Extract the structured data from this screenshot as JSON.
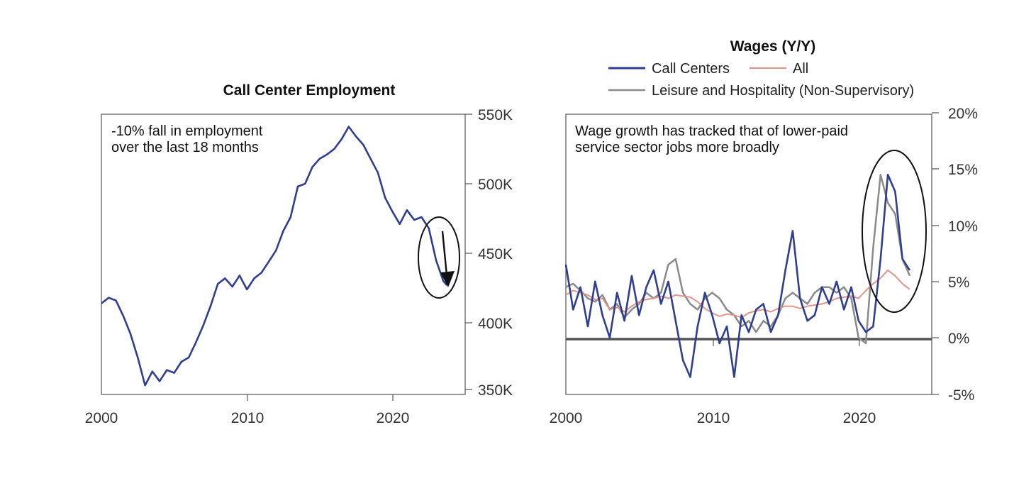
{
  "chart_data": [
    {
      "type": "line",
      "title": "Call Center Employment",
      "annotation": [
        "-10% fall in employment",
        "over the last 18 months"
      ],
      "x_ticks": [
        "2000",
        "2010",
        "2020"
      ],
      "y_ticks": [
        "550K",
        "500K",
        "450K",
        "400K",
        "350K"
      ],
      "xlim": [
        2000,
        2025
      ],
      "ylim": [
        346,
        552
      ],
      "y_axis_side": "right",
      "x": [
        2000,
        2000.5,
        2001,
        2001.5,
        2002,
        2002.5,
        2003,
        2003.5,
        2004,
        2004.5,
        2005,
        2005.5,
        2006,
        2006.5,
        2007,
        2007.5,
        2008,
        2008.5,
        2009,
        2009.5,
        2010,
        2010.5,
        2011,
        2011.5,
        2012,
        2012.5,
        2013,
        2013.5,
        2014,
        2014.5,
        2015,
        2015.5,
        2016,
        2016.5,
        2017,
        2017.5,
        2018,
        2018.5,
        2019,
        2019.5,
        2020,
        2020.5,
        2021,
        2021.5,
        2022,
        2022.5,
        2023,
        2023.5,
        2023.75
      ],
      "series": [
        {
          "color": "#2f3e8f",
          "values": [
            414,
            418,
            416,
            405,
            392,
            375,
            355,
            365,
            358,
            366,
            364,
            372,
            375,
            386,
            398,
            412,
            428,
            432,
            426,
            434,
            424,
            432,
            436,
            444,
            452,
            466,
            476,
            498,
            500,
            512,
            518,
            521,
            525,
            532,
            541,
            534,
            528,
            518,
            508,
            490,
            480,
            471,
            481,
            474,
            476,
            468,
            445,
            430,
            427
          ]
        }
      ]
    },
    {
      "type": "line",
      "title": "Wages (Y/Y)",
      "annotation": [
        "Wage growth has tracked that of lower-paid",
        "service sector jobs more broadly"
      ],
      "x_ticks": [
        "2000",
        "2010",
        "2020"
      ],
      "y_ticks": [
        "20%",
        "15%",
        "10%",
        "5%",
        "0%",
        "-5%"
      ],
      "xlim": [
        2000,
        2025
      ],
      "ylim": [
        -5,
        20
      ],
      "y_axis_side": "right",
      "x": [
        2000,
        2000.5,
        2001,
        2001.5,
        2002,
        2002.5,
        2003,
        2003.5,
        2004,
        2004.5,
        2005,
        2005.5,
        2006,
        2006.5,
        2007,
        2007.5,
        2008,
        2008.5,
        2009,
        2009.5,
        2010,
        2010.5,
        2011,
        2011.5,
        2012,
        2012.5,
        2013,
        2013.5,
        2014,
        2014.5,
        2015,
        2015.5,
        2016,
        2016.5,
        2017,
        2017.5,
        2018,
        2018.5,
        2019,
        2019.5,
        2020,
        2020.5,
        2021,
        2021.5,
        2022,
        2022.5,
        2023,
        2023.5
      ],
      "series": [
        {
          "name": "Call Centers",
          "color": "#2f3e8f",
          "values": [
            6.5,
            2.5,
            4.5,
            1,
            5,
            2,
            0,
            4,
            1.5,
            5.5,
            2,
            4.5,
            6,
            3,
            5,
            1.5,
            -2,
            -3.5,
            1,
            4,
            2,
            -0.5,
            1,
            -3.5,
            2,
            0.5,
            2.5,
            3,
            0.5,
            2,
            6,
            9.5,
            3.5,
            1.5,
            2,
            4.5,
            3,
            5,
            2.5,
            4.5,
            1.5,
            0.5,
            1,
            7,
            14.5,
            13,
            7,
            6
          ]
        },
        {
          "name": "All",
          "color": "#e0948a",
          "values": [
            3.8,
            4.2,
            4,
            3.8,
            3.4,
            3.5,
            2.5,
            2.7,
            2.3,
            2.8,
            3.2,
            3.4,
            3.5,
            3.7,
            3.5,
            3.8,
            3.7,
            3.6,
            3.2,
            2.6,
            2.2,
            1.9,
            2.1,
            2,
            1.8,
            2.2,
            2.4,
            2.5,
            2.3,
            2.6,
            2.8,
            2.8,
            2.6,
            2.8,
            2.9,
            3,
            3.2,
            3.5,
            3.6,
            3.7,
            3.5,
            4.2,
            4.8,
            5.3,
            6,
            5.5,
            4.8,
            4.3
          ]
        },
        {
          "name": "Leisure and Hospitality (Non-Supervisory)",
          "color": "#8a8a8a",
          "values": [
            4.5,
            4.8,
            4.2,
            3.5,
            3.2,
            3.8,
            2.5,
            3,
            1.8,
            2.5,
            3,
            4,
            3.5,
            4,
            6.5,
            7,
            4,
            3,
            2.5,
            3.5,
            4,
            3.5,
            2.5,
            2,
            1,
            1.5,
            0.5,
            1.5,
            1,
            2,
            3.5,
            4,
            3.5,
            3,
            4,
            4.5,
            4.5,
            4,
            4.5,
            3.5,
            0,
            -0.5,
            8,
            14.5,
            12,
            11,
            7,
            5.5
          ]
        }
      ]
    }
  ]
}
